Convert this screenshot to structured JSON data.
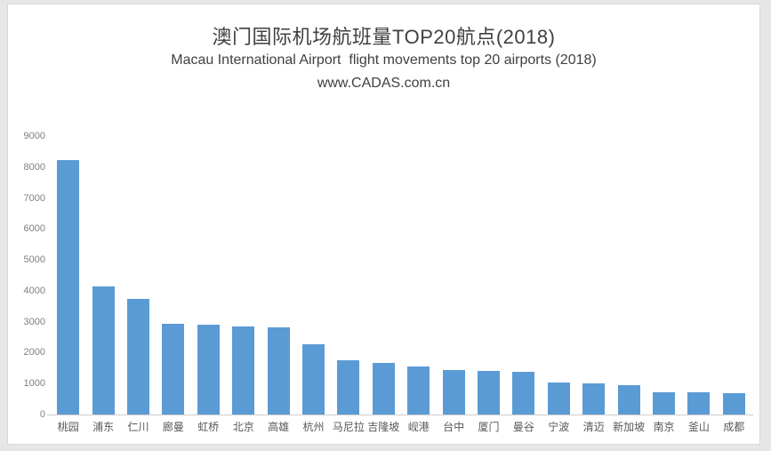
{
  "chart_data": {
    "type": "bar",
    "title": "澳门国际机场航班量TOP20航点(2018)",
    "subtitle": "Macau International Airport  flight movements top 20 airports (2018)",
    "source": "www.CADAS.com.cn",
    "categories": [
      "桃园",
      "浦东",
      "仁川",
      "廊曼",
      "虹桥",
      "北京",
      "高雄",
      "杭州",
      "马尼拉",
      "吉隆坡",
      "岘港",
      "台中",
      "厦门",
      "曼谷",
      "宁波",
      "清迈",
      "新加坡",
      "南京",
      "釜山",
      "成都"
    ],
    "values": [
      8220,
      4130,
      3740,
      2940,
      2890,
      2850,
      2810,
      2280,
      1760,
      1670,
      1540,
      1440,
      1400,
      1390,
      1040,
      1010,
      940,
      720,
      710,
      690
    ],
    "xlabel": "",
    "ylabel": "",
    "ylim": [
      0,
      9000
    ],
    "ytick_step": 1000,
    "ytick_labels": [
      "0",
      "1000",
      "2000",
      "3000",
      "4000",
      "5000",
      "6000",
      "7000",
      "8000",
      "9000"
    ],
    "grid": false,
    "legend": false,
    "bar_count": 20
  },
  "colors": {
    "bar": "#5B9BD5",
    "axis_line": "#D0CECE",
    "title_text": "#404040",
    "tick_label_text": "#7F7F7F",
    "category_label_text": "#595959",
    "panel_background": "#FFFFFF",
    "panel_border": "#D9D9D9",
    "page_margin_background": "#E7E6E6"
  }
}
